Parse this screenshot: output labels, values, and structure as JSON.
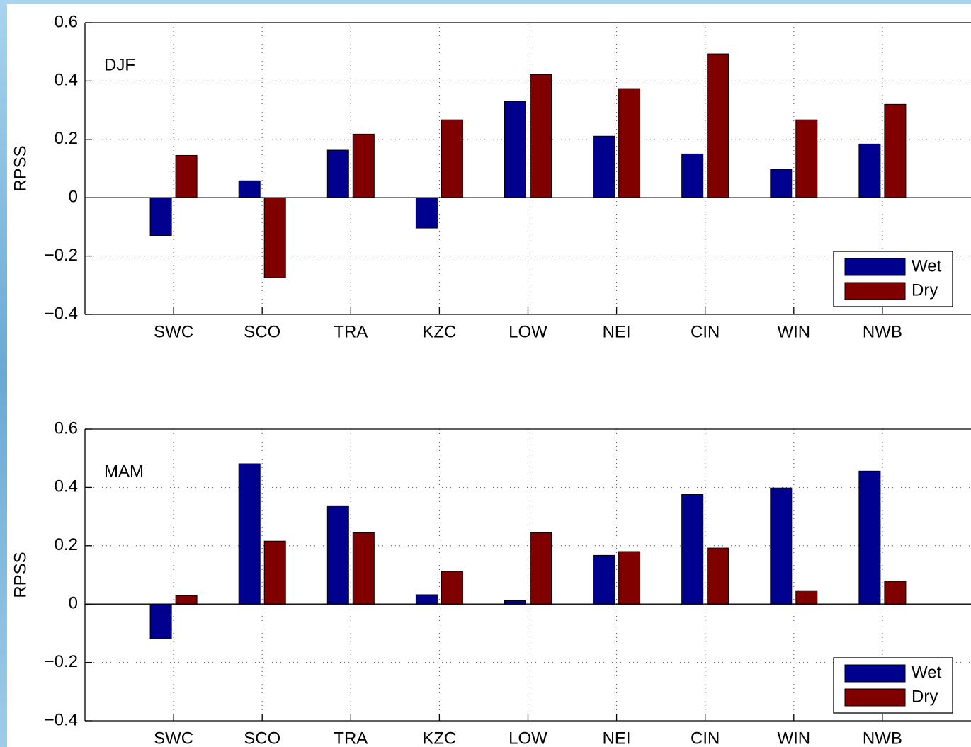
{
  "chart_data": [
    {
      "type": "bar",
      "annotation": "DJF",
      "ylabel": "RPSS",
      "categories": [
        "SWC",
        "SCO",
        "TRA",
        "KZC",
        "LOW",
        "NEI",
        "CIN",
        "WIN",
        "NWB"
      ],
      "series": [
        {
          "name": "Wet",
          "color": "#00008f",
          "values": [
            -0.13,
            0.058,
            0.163,
            -0.104,
            0.33,
            0.211,
            0.15,
            0.097,
            0.184
          ]
        },
        {
          "name": "Dry",
          "color": "#800000",
          "values": [
            0.145,
            -0.274,
            0.218,
            0.267,
            0.422,
            0.374,
            0.493,
            0.267,
            0.32
          ]
        }
      ],
      "ylim": [
        -0.4,
        0.6
      ],
      "yticks": [
        {
          "value": -0.4,
          "label": "−0.4"
        },
        {
          "value": -0.2,
          "label": "−0.2"
        },
        0,
        0.2,
        0.4,
        0.6
      ],
      "grid": true,
      "legend": "lower right"
    },
    {
      "type": "bar",
      "annotation": "MAM",
      "ylabel": "RPSS",
      "categories": [
        "SWC",
        "SCO",
        "TRA",
        "KZC",
        "LOW",
        "NEI",
        "CIN",
        "WIN",
        "NWB"
      ],
      "series": [
        {
          "name": "Wet",
          "color": "#00008f",
          "values": [
            -0.119,
            0.481,
            0.337,
            0.032,
            0.012,
            0.167,
            0.376,
            0.398,
            0.456
          ]
        },
        {
          "name": "Dry",
          "color": "#800000",
          "values": [
            0.029,
            0.216,
            0.245,
            0.112,
            0.245,
            0.18,
            0.192,
            0.046,
            0.078
          ]
        }
      ],
      "ylim": [
        -0.4,
        0.6
      ],
      "yticks": [
        {
          "value": -0.4,
          "label": "−0.4"
        },
        {
          "value": -0.2,
          "label": "−0.2"
        },
        0,
        0.2,
        0.4,
        0.6
      ],
      "grid": true,
      "legend": "lower right"
    }
  ]
}
